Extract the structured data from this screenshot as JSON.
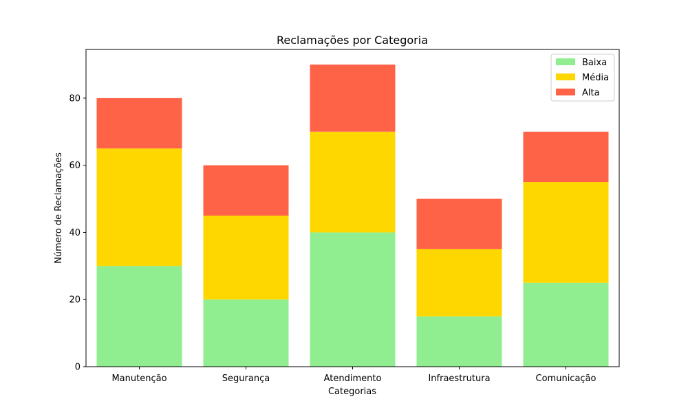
{
  "chart_data": {
    "type": "bar",
    "stacked": true,
    "title": "Reclamações por Categoria",
    "xlabel": "Categorias",
    "ylabel": "Número de Reclamações",
    "categories": [
      "Manutenção",
      "Segurança",
      "Atendimento",
      "Infraestrutura",
      "Comunicação"
    ],
    "series": [
      {
        "name": "Baixa",
        "color": "#90EE90",
        "values": [
          30,
          20,
          40,
          15,
          25
        ]
      },
      {
        "name": "Média",
        "color": "#FFD700",
        "values": [
          35,
          25,
          30,
          20,
          30
        ]
      },
      {
        "name": "Alta",
        "color": "#FF6347",
        "values": [
          15,
          15,
          20,
          15,
          15
        ]
      }
    ],
    "ylim": [
      0,
      94.5
    ],
    "yticks": [
      0,
      20,
      40,
      60,
      80
    ],
    "grid": false,
    "legend_position": "top-right"
  }
}
